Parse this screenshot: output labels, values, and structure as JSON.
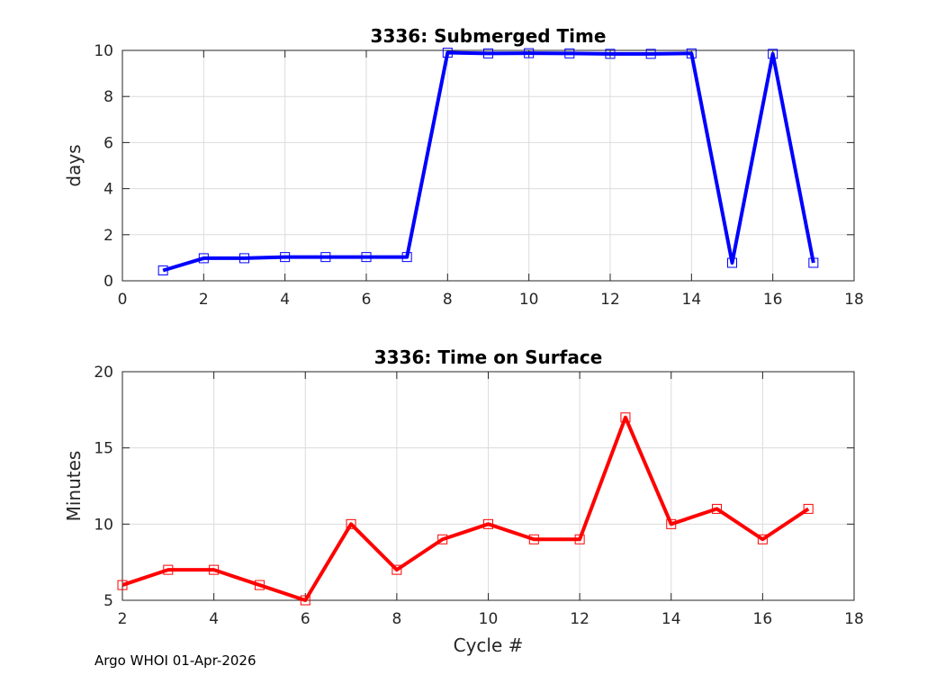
{
  "chart_data": [
    {
      "type": "line",
      "title": "3336: Submerged Time",
      "xlabel": "",
      "ylabel": "days",
      "xlim": [
        0,
        18
      ],
      "ylim": [
        0,
        10
      ],
      "xticks": [
        0,
        2,
        4,
        6,
        8,
        10,
        12,
        14,
        16,
        18
      ],
      "yticks": [
        0,
        2,
        4,
        6,
        8,
        10
      ],
      "grid": true,
      "color": "#0000ff",
      "marker": "square",
      "x": [
        1,
        2,
        3,
        4,
        5,
        6,
        7,
        8,
        9,
        10,
        11,
        12,
        13,
        14,
        15,
        16,
        17
      ],
      "y": [
        0.45,
        0.98,
        0.98,
        1.03,
        1.03,
        1.03,
        1.03,
        9.9,
        9.87,
        9.88,
        9.87,
        9.85,
        9.85,
        9.87,
        0.78,
        9.85,
        0.78
      ]
    },
    {
      "type": "line",
      "title": "3336: Time on Surface",
      "xlabel": "Cycle #",
      "ylabel": "Minutes",
      "xlim": [
        2,
        18
      ],
      "ylim": [
        5,
        20
      ],
      "xticks": [
        2,
        4,
        6,
        8,
        10,
        12,
        14,
        16,
        18
      ],
      "yticks": [
        5,
        10,
        15,
        20
      ],
      "grid": true,
      "color": "#ff0000",
      "marker": "square",
      "x": [
        2,
        3,
        4,
        5,
        6,
        7,
        8,
        9,
        10,
        11,
        12,
        13,
        14,
        15,
        16,
        17
      ],
      "y": [
        6,
        7,
        7,
        6,
        5,
        10,
        7,
        9,
        10,
        9,
        9,
        17,
        10,
        11,
        9,
        11
      ]
    }
  ],
  "footer": "Argo WHOI 01-Apr-2026"
}
